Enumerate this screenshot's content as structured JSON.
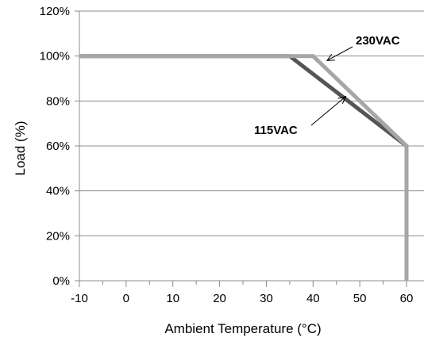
{
  "chart_data": {
    "type": "line",
    "xlabel": "Ambient Temperature (°C)",
    "ylabel": "Load (%)",
    "xlim": [
      -10,
      60
    ],
    "ylim": [
      0,
      120
    ],
    "x_ticks": [
      "-10",
      "0",
      "10",
      "20",
      "30",
      "40",
      "50",
      "60"
    ],
    "x_tick_values": [
      -10,
      0,
      10,
      20,
      30,
      40,
      50,
      60
    ],
    "y_ticks": [
      "0%",
      "20%",
      "40%",
      "60%",
      "80%",
      "100%",
      "120%"
    ],
    "y_tick_values": [
      0,
      20,
      40,
      60,
      80,
      100,
      120
    ],
    "grid": "horizontal",
    "series": [
      {
        "name": "115VAC",
        "color": "#555555",
        "points": [
          [
            -10,
            100
          ],
          [
            35,
            100
          ],
          [
            60,
            60
          ],
          [
            60,
            0
          ]
        ]
      },
      {
        "name": "230VAC",
        "color": "#a6a6a6",
        "points": [
          [
            -10,
            100
          ],
          [
            40,
            100
          ],
          [
            60,
            60
          ],
          [
            60,
            0
          ]
        ]
      }
    ],
    "annotations": [
      {
        "text": "230VAC",
        "arrow_to": [
          43,
          98
        ]
      },
      {
        "text": "115VAC",
        "arrow_to": [
          47,
          82
        ]
      }
    ]
  }
}
